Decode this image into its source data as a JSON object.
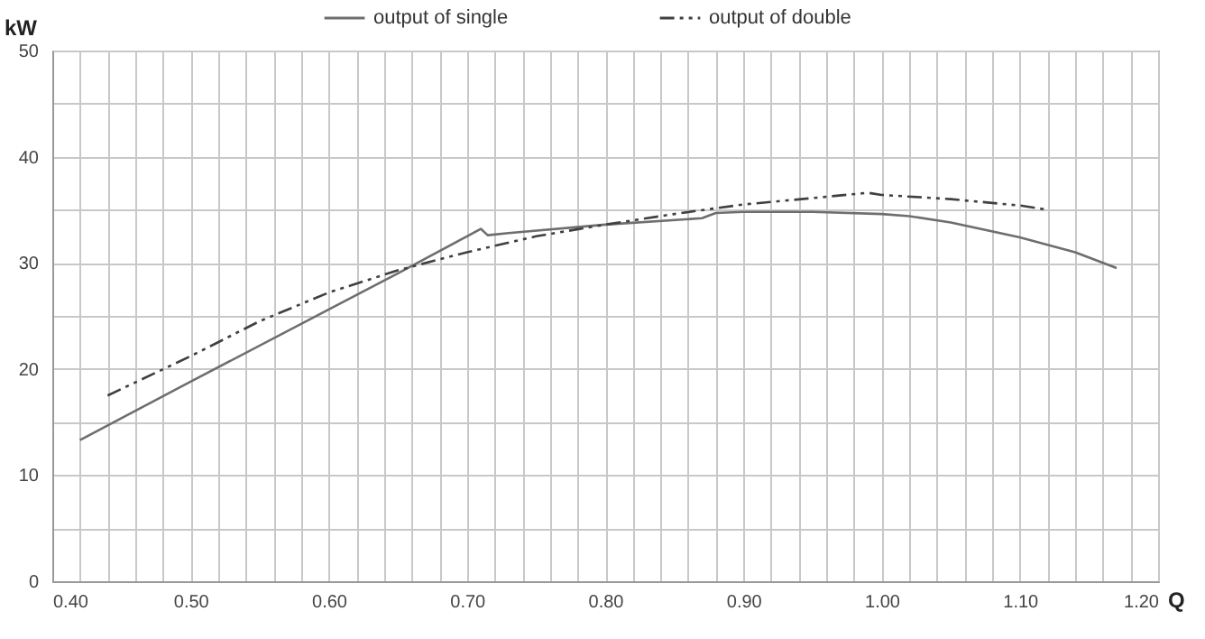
{
  "chart_data": {
    "type": "line",
    "xlabel": "Q",
    "ylabel": "kW",
    "xlim": [
      0.4,
      1.2
    ],
    "ylim": [
      0,
      50
    ],
    "xticks": [
      {
        "value": 0.4,
        "label": "0.40"
      },
      {
        "value": 0.42,
        "label": null
      },
      {
        "value": 0.44,
        "label": null
      },
      {
        "value": 0.46,
        "label": null
      },
      {
        "value": 0.48,
        "label": null
      },
      {
        "value": 0.5,
        "label": "0.50"
      },
      {
        "value": 0.52,
        "label": null
      },
      {
        "value": 0.54,
        "label": null
      },
      {
        "value": 0.56,
        "label": null
      },
      {
        "value": 0.58,
        "label": null
      },
      {
        "value": 0.6,
        "label": "0.60"
      },
      {
        "value": 0.62,
        "label": null
      },
      {
        "value": 0.64,
        "label": null
      },
      {
        "value": 0.66,
        "label": null
      },
      {
        "value": 0.68,
        "label": null
      },
      {
        "value": 0.7,
        "label": "0.70"
      },
      {
        "value": 0.72,
        "label": null
      },
      {
        "value": 0.74,
        "label": null
      },
      {
        "value": 0.76,
        "label": null
      },
      {
        "value": 0.78,
        "label": null
      },
      {
        "value": 0.8,
        "label": "0.80"
      },
      {
        "value": 0.82,
        "label": null
      },
      {
        "value": 0.84,
        "label": null
      },
      {
        "value": 0.86,
        "label": null
      },
      {
        "value": 0.88,
        "label": null
      },
      {
        "value": 0.9,
        "label": "0.90"
      },
      {
        "value": 0.92,
        "label": null
      },
      {
        "value": 0.94,
        "label": null
      },
      {
        "value": 0.96,
        "label": null
      },
      {
        "value": 0.98,
        "label": null
      },
      {
        "value": 1.0,
        "label": "1.00"
      },
      {
        "value": 1.02,
        "label": null
      },
      {
        "value": 1.04,
        "label": null
      },
      {
        "value": 1.06,
        "label": null
      },
      {
        "value": 1.08,
        "label": null
      },
      {
        "value": 1.1,
        "label": "1.10"
      },
      {
        "value": 1.12,
        "label": null
      },
      {
        "value": 1.14,
        "label": null
      },
      {
        "value": 1.16,
        "label": null
      },
      {
        "value": 1.18,
        "label": null
      },
      {
        "value": 1.2,
        "label": "1.20"
      }
    ],
    "yticks": [
      0,
      {
        "value": 5,
        "label": null
      },
      10,
      {
        "value": 15,
        "label": null
      },
      20,
      {
        "value": 25,
        "label": null
      },
      30,
      {
        "value": 35,
        "label": null
      },
      40,
      {
        "value": 45,
        "label": null
      },
      50
    ],
    "grid": true,
    "legend": "top",
    "series": [
      {
        "name": "output of single",
        "color": "#6e6e6e",
        "line_style": "solid",
        "x": [
          0.42,
          0.5,
          0.6,
          0.65,
          0.7,
          0.71,
          0.715,
          0.73,
          0.8,
          0.87,
          0.88,
          0.9,
          0.95,
          1.0,
          1.02,
          1.05,
          1.1,
          1.14,
          1.17
        ],
        "values": [
          13.3,
          18.8,
          25.6,
          29,
          32.5,
          33.2,
          32.6,
          32.8,
          33.6,
          34.2,
          34.7,
          34.8,
          34.8,
          34.6,
          34.4,
          33.8,
          32.4,
          31,
          29.5
        ]
      },
      {
        "name": "output of double",
        "color": "#404040",
        "line_style": "dashed",
        "x": [
          0.44,
          0.5,
          0.55,
          0.6,
          0.65,
          0.7,
          0.75,
          0.8,
          0.85,
          0.9,
          0.95,
          0.99,
          1.0,
          1.05,
          1.1,
          1.12
        ],
        "values": [
          17.5,
          21.2,
          24.5,
          27.2,
          29.3,
          31,
          32.5,
          33.6,
          34.6,
          35.5,
          36.1,
          36.6,
          36.4,
          36,
          35.4,
          35
        ]
      }
    ]
  }
}
